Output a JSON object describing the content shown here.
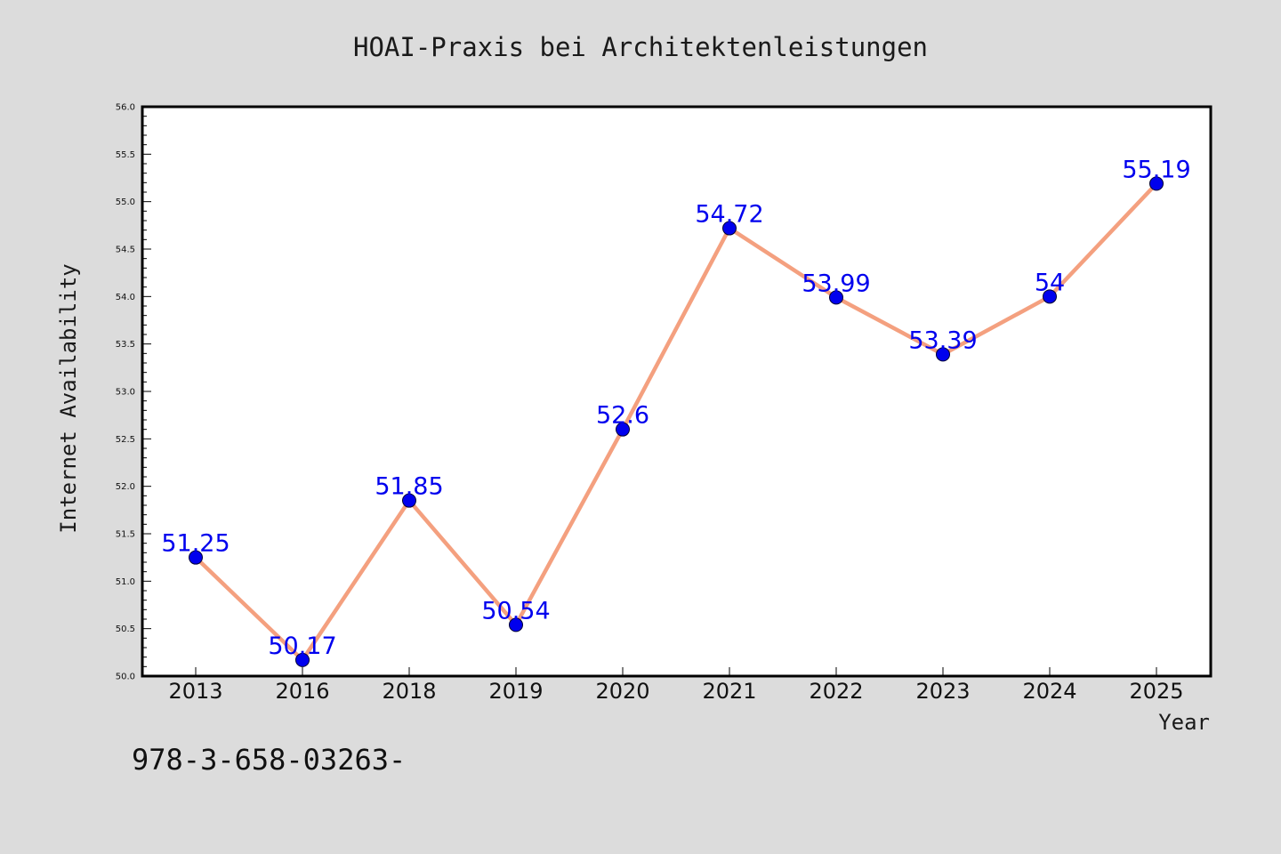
{
  "chart_data": {
    "type": "line",
    "title": "HOAI-Praxis bei Architektenleistungen",
    "xlabel": "Year",
    "ylabel": "Internet Availability",
    "categories": [
      "2013",
      "2016",
      "2018",
      "2019",
      "2020",
      "2021",
      "2022",
      "2023",
      "2024",
      "2025"
    ],
    "series": [
      {
        "values": [
          51.25,
          50.17,
          51.85,
          50.54,
          52.6,
          54.72,
          53.99,
          53.39,
          54,
          55.19
        ],
        "labels": [
          "51.25",
          "50.17",
          "51.85",
          "50.54",
          "52.6",
          "54.72",
          "53.99",
          "53.39",
          "54",
          "55.19"
        ]
      }
    ],
    "ylim": [
      50.0,
      56.0
    ],
    "yticks": [
      "50.0",
      "50.5",
      "51.0",
      "51.5",
      "52.0",
      "52.5",
      "53.0",
      "53.5",
      "54.0",
      "54.5",
      "55.0",
      "55.5",
      "56.0"
    ],
    "grid": false,
    "legend": "none",
    "line_color": "#f4a07f",
    "marker_color": "#0000ee",
    "label_color": "#0000ee"
  },
  "footer_text": "978-3-658-03263-"
}
